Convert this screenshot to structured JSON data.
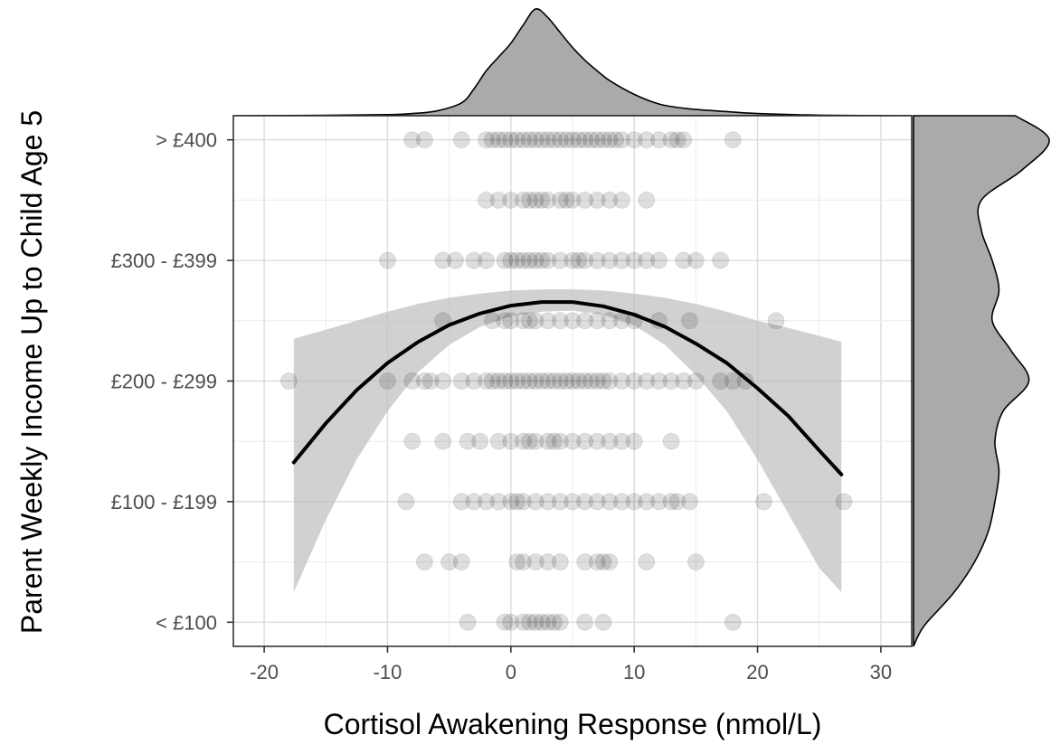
{
  "chart_data": {
    "type": "scatter",
    "title": "",
    "xlabel": "Cortisol Awakening Response (nmol/L)",
    "ylabel": "Parent Weekly Income Up to Child Age 5",
    "xlim": [
      -22.5,
      32.5
    ],
    "ylim": [
      0.6,
      9.4
    ],
    "x_ticks": [
      -20,
      -10,
      0,
      10,
      20,
      30
    ],
    "x_tick_labels": [
      "-20",
      "-10",
      "0",
      "10",
      "20",
      "30"
    ],
    "y_ticks": [
      1,
      3,
      5,
      7,
      9
    ],
    "y_tick_labels": [
      "< £100",
      "£100 - £199",
      "£200 - £299",
      "£300 - £399",
      "> £400"
    ],
    "grid": true,
    "point_color": "#000000",
    "point_alpha": 0.13,
    "ribbon_color": "#bfbfbf",
    "line_color": "#000000",
    "marginal_fill": "#aaaaaa",
    "points": [
      {
        "y": 9,
        "x": [
          -8,
          -7,
          -4,
          -2,
          -1.5,
          -1,
          -0.5,
          0,
          0.5,
          1,
          1.5,
          2,
          2.5,
          3,
          3.5,
          4,
          4.5,
          5,
          5.5,
          6,
          6.5,
          7,
          7.5,
          8,
          8.5,
          9,
          10,
          11,
          12,
          13,
          13.5,
          14,
          18
        ]
      },
      {
        "y": 8,
        "x": [
          -2,
          -1,
          0,
          1,
          1.5,
          2,
          2.5,
          3,
          4,
          4.5,
          5,
          6,
          7,
          8,
          9,
          11
        ]
      },
      {
        "y": 7,
        "x": [
          -10,
          -5.5,
          -4.5,
          -3,
          -2,
          -0.5,
          0,
          0.5,
          1,
          1.5,
          2,
          2.5,
          3,
          4,
          5,
          5.5,
          6,
          7,
          8,
          9,
          10,
          11,
          12,
          14,
          15,
          17
        ]
      },
      {
        "y": 6,
        "x": [
          -5.5,
          -1.5,
          -0.5,
          0,
          1,
          1.5,
          2,
          3,
          4,
          5,
          6,
          7,
          8,
          9,
          10,
          12,
          14.5,
          21.5
        ]
      },
      {
        "y": 5,
        "x": [
          -18,
          -10,
          -8,
          -7,
          -6.5,
          -5.5,
          -4,
          -3,
          -2,
          -1.5,
          -1,
          -0.5,
          0,
          0.5,
          1,
          1.5,
          2,
          2.5,
          3,
          3.5,
          4,
          4.5,
          5,
          5.5,
          6,
          6.5,
          7,
          7.5,
          8,
          9,
          10,
          11,
          12,
          13,
          14,
          15,
          17,
          18,
          19
        ]
      },
      {
        "y": 4,
        "x": [
          -8,
          -5.5,
          -3.5,
          -2.5,
          -1,
          0,
          1,
          1.5,
          2,
          3,
          3.5,
          4,
          5,
          6,
          7,
          8,
          9,
          10,
          13
        ]
      },
      {
        "y": 3,
        "x": [
          -8.5,
          -4,
          -3,
          -2,
          -1,
          0,
          0.5,
          1,
          2,
          3,
          4,
          5,
          6,
          7,
          8,
          9,
          10,
          11,
          12,
          13,
          13.5,
          14.5,
          20.5,
          27
        ]
      },
      {
        "y": 2,
        "x": [
          -7,
          -5,
          -4,
          0.5,
          1,
          2,
          3,
          4,
          6,
          7,
          7.5,
          8,
          11,
          15
        ]
      },
      {
        "y": 1,
        "x": [
          -3.5,
          -0.5,
          0,
          1,
          1.5,
          2,
          2.5,
          3,
          3.5,
          4,
          6,
          7.5,
          18
        ]
      }
    ],
    "fit": {
      "x": [
        -17.6,
        -15,
        -12.5,
        -10,
        -7.5,
        -5,
        -2.5,
        0,
        2.5,
        5,
        7.5,
        10,
        12.5,
        15,
        17.5,
        20,
        22.5,
        25,
        26.8
      ],
      "y": [
        3.65,
        4.3,
        4.85,
        5.3,
        5.65,
        5.93,
        6.12,
        6.25,
        6.31,
        6.31,
        6.24,
        6.1,
        5.9,
        5.62,
        5.3,
        4.88,
        4.42,
        3.85,
        3.45
      ],
      "lower": [
        1.5,
        2.7,
        3.7,
        4.5,
        5.15,
        5.6,
        5.9,
        6.07,
        6.15,
        6.17,
        6.1,
        5.92,
        5.6,
        5.1,
        4.5,
        3.7,
        2.8,
        1.9,
        1.5
      ],
      "upper": [
        5.7,
        5.85,
        6.0,
        6.15,
        6.28,
        6.38,
        6.45,
        6.5,
        6.52,
        6.52,
        6.5,
        6.45,
        6.38,
        6.28,
        6.15,
        6.0,
        5.88,
        5.75,
        5.65
      ]
    },
    "x_density": {
      "x": [
        -22.5,
        -15,
        -10,
        -8,
        -6,
        -4,
        -3,
        -2,
        -1,
        0,
        1,
        2,
        3,
        4,
        5,
        6,
        7,
        8,
        10,
        12,
        14,
        16,
        18,
        20,
        25,
        32.5
      ],
      "d": [
        0,
        0.003,
        0.01,
        0.02,
        0.045,
        0.12,
        0.25,
        0.42,
        0.55,
        0.68,
        0.85,
        1.0,
        0.92,
        0.78,
        0.64,
        0.52,
        0.42,
        0.33,
        0.2,
        0.11,
        0.07,
        0.05,
        0.035,
        0.02,
        0.005,
        0
      ]
    },
    "y_density": {
      "y": [
        0.6,
        0.8,
        1.0,
        1.5,
        2.0,
        2.5,
        3.0,
        3.5,
        4.0,
        4.5,
        5.0,
        5.5,
        6.0,
        6.5,
        7.0,
        7.5,
        8.0,
        8.5,
        9.0,
        9.4
      ],
      "d": [
        0,
        0.04,
        0.1,
        0.3,
        0.45,
        0.55,
        0.6,
        0.63,
        0.6,
        0.66,
        0.85,
        0.72,
        0.58,
        0.63,
        0.58,
        0.5,
        0.5,
        0.8,
        1.0,
        0.75
      ]
    }
  }
}
